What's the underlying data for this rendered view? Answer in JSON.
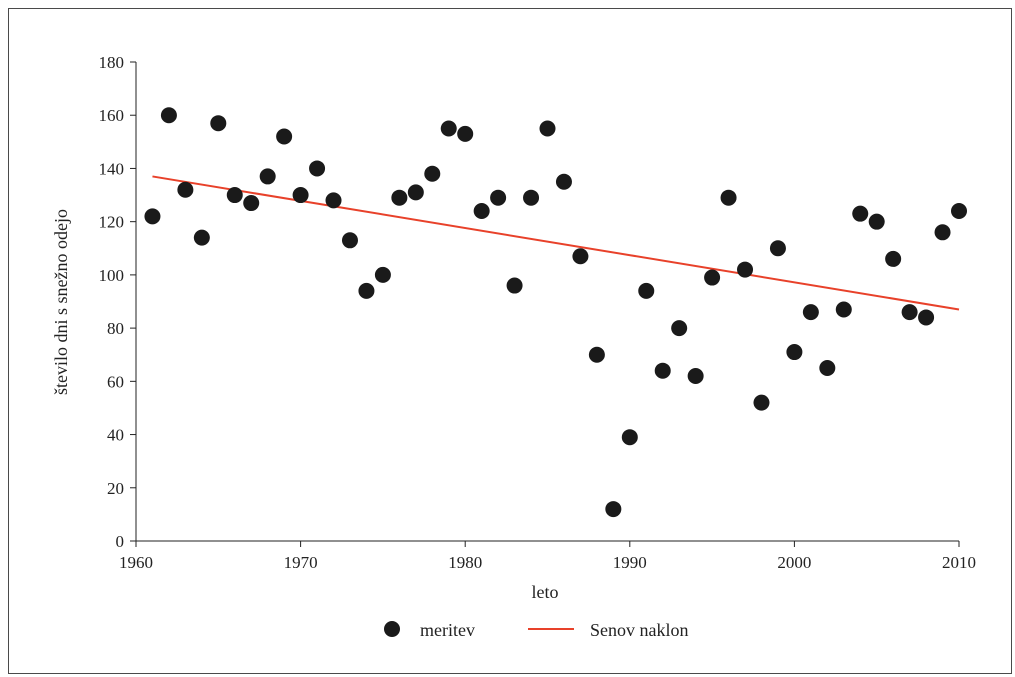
{
  "chart_data": {
    "type": "scatter",
    "xlabel": "leto",
    "ylabel": "število dni s snežno odejo",
    "xlim": [
      1960,
      2010
    ],
    "ylim": [
      0,
      180
    ],
    "x_ticks": [
      1960,
      1970,
      1980,
      1990,
      2000,
      2010
    ],
    "y_ticks": [
      0,
      20,
      40,
      60,
      80,
      100,
      120,
      140,
      160,
      180
    ],
    "grid": false,
    "legend_position": "bottom",
    "series": [
      {
        "name": "meritev",
        "kind": "scatter",
        "color": "#1a1a1a",
        "x": [
          1961,
          1962,
          1963,
          1964,
          1965,
          1966,
          1967,
          1968,
          1969,
          1970,
          1971,
          1972,
          1973,
          1974,
          1975,
          1976,
          1977,
          1978,
          1979,
          1980,
          1981,
          1982,
          1983,
          1984,
          1985,
          1986,
          1987,
          1988,
          1989,
          1990,
          1991,
          1992,
          1993,
          1994,
          1995,
          1996,
          1997,
          1998,
          1999,
          2000,
          2001,
          2002,
          2003,
          2004,
          2005,
          2006,
          2007,
          2008,
          2009,
          2010
        ],
        "y": [
          122,
          160,
          132,
          114,
          157,
          130,
          127,
          137,
          152,
          130,
          140,
          128,
          113,
          94,
          100,
          129,
          131,
          138,
          155,
          153,
          124,
          129,
          96,
          129,
          155,
          135,
          107,
          70,
          12,
          39,
          94,
          64,
          80,
          62,
          99,
          129,
          102,
          52,
          110,
          71,
          86,
          65,
          87,
          123,
          120,
          106,
          86,
          84,
          116,
          124
        ]
      },
      {
        "name": "Senov naklon",
        "kind": "line",
        "color": "#e8412a",
        "x": [
          1961,
          2010
        ],
        "y": [
          137,
          87
        ]
      }
    ]
  }
}
